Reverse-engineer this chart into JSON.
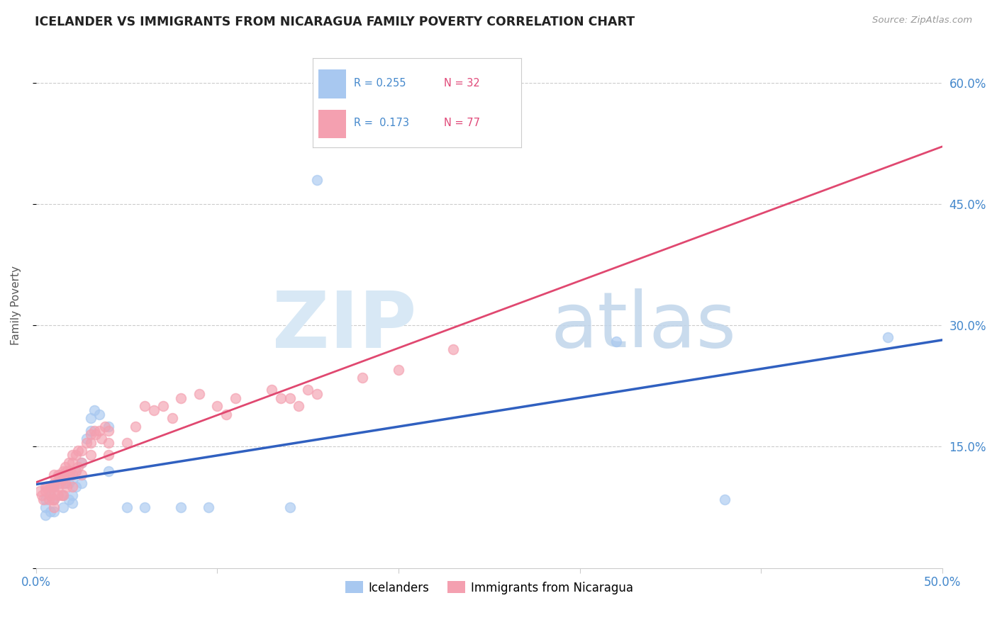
{
  "title": "ICELANDER VS IMMIGRANTS FROM NICARAGUA FAMILY POVERTY CORRELATION CHART",
  "source": "Source: ZipAtlas.com",
  "ylabel": "Family Poverty",
  "xlim": [
    0.0,
    0.5
  ],
  "ylim": [
    0.0,
    0.65
  ],
  "color_blue": "#A8C8F0",
  "color_pink": "#F4A0B0",
  "line_color_blue": "#3060C0",
  "line_color_pink": "#E04870",
  "background_color": "#FFFFFF",
  "icelanders_x": [
    0.005,
    0.005,
    0.005,
    0.008,
    0.008,
    0.01,
    0.01,
    0.01,
    0.015,
    0.015,
    0.015,
    0.018,
    0.018,
    0.02,
    0.02,
    0.02,
    0.022,
    0.022,
    0.025,
    0.025,
    0.028,
    0.03,
    0.03,
    0.032,
    0.035,
    0.04,
    0.04,
    0.05,
    0.06,
    0.08,
    0.095,
    0.14,
    0.155,
    0.32,
    0.38,
    0.47
  ],
  "icelanders_y": [
    0.085,
    0.075,
    0.065,
    0.09,
    0.07,
    0.1,
    0.085,
    0.07,
    0.105,
    0.09,
    0.075,
    0.105,
    0.085,
    0.11,
    0.09,
    0.08,
    0.12,
    0.1,
    0.13,
    0.105,
    0.16,
    0.185,
    0.17,
    0.195,
    0.19,
    0.175,
    0.12,
    0.075,
    0.075,
    0.075,
    0.075,
    0.075,
    0.48,
    0.28,
    0.085,
    0.285
  ],
  "nicaragua_x": [
    0.002,
    0.003,
    0.004,
    0.005,
    0.005,
    0.006,
    0.007,
    0.007,
    0.008,
    0.008,
    0.009,
    0.009,
    0.01,
    0.01,
    0.01,
    0.01,
    0.01,
    0.012,
    0.012,
    0.012,
    0.013,
    0.013,
    0.014,
    0.014,
    0.015,
    0.015,
    0.015,
    0.016,
    0.016,
    0.017,
    0.017,
    0.018,
    0.018,
    0.019,
    0.02,
    0.02,
    0.02,
    0.02,
    0.022,
    0.022,
    0.023,
    0.023,
    0.025,
    0.025,
    0.025,
    0.028,
    0.03,
    0.03,
    0.03,
    0.032,
    0.033,
    0.035,
    0.036,
    0.038,
    0.04,
    0.04,
    0.04,
    0.05,
    0.055,
    0.06,
    0.065,
    0.07,
    0.075,
    0.08,
    0.09,
    0.1,
    0.105,
    0.11,
    0.13,
    0.135,
    0.14,
    0.145,
    0.15,
    0.155,
    0.18,
    0.2,
    0.23
  ],
  "nicaragua_y": [
    0.095,
    0.09,
    0.085,
    0.1,
    0.095,
    0.1,
    0.095,
    0.085,
    0.1,
    0.09,
    0.1,
    0.085,
    0.115,
    0.105,
    0.095,
    0.085,
    0.075,
    0.115,
    0.1,
    0.09,
    0.115,
    0.105,
    0.115,
    0.09,
    0.12,
    0.11,
    0.09,
    0.125,
    0.105,
    0.12,
    0.1,
    0.13,
    0.115,
    0.12,
    0.14,
    0.13,
    0.115,
    0.1,
    0.14,
    0.12,
    0.145,
    0.125,
    0.145,
    0.13,
    0.115,
    0.155,
    0.165,
    0.155,
    0.14,
    0.17,
    0.165,
    0.17,
    0.16,
    0.175,
    0.17,
    0.155,
    0.14,
    0.155,
    0.175,
    0.2,
    0.195,
    0.2,
    0.185,
    0.21,
    0.215,
    0.2,
    0.19,
    0.21,
    0.22,
    0.21,
    0.21,
    0.2,
    0.22,
    0.215,
    0.235,
    0.245,
    0.27
  ]
}
